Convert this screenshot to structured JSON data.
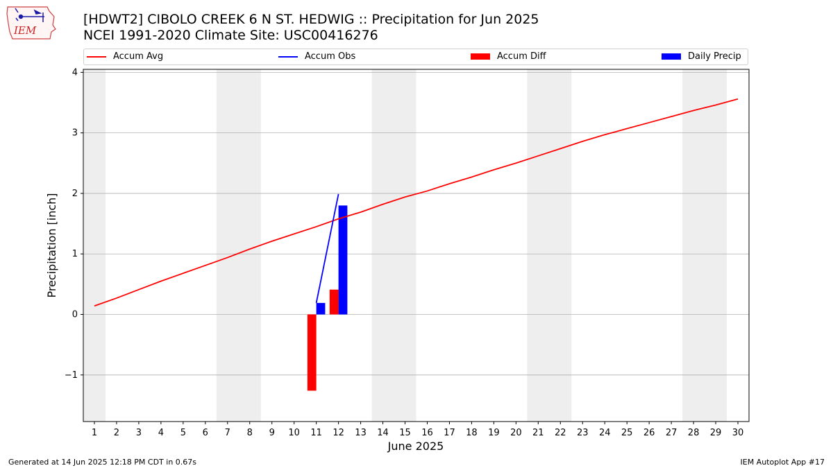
{
  "chart_data": {
    "type": "bar",
    "title": "[HDWT2] CIBOLO CREEK 6 N ST. HEDWIG :: Precipitation for Jun 2025",
    "subtitle": "NCEI 1991-2020 Climate Site: USC00416276",
    "xlabel": "June 2025",
    "ylabel": "Precipitation [inch]",
    "xlim": [
      0.5,
      30.5
    ],
    "ylim": [
      -1.77,
      4.05
    ],
    "yticks": [
      -1,
      0,
      1,
      2,
      3,
      4
    ],
    "ytick_labels": [
      "−1",
      "0",
      "1",
      "2",
      "3",
      "4"
    ],
    "grid": "horizontal",
    "legend_position": "top",
    "weekend_shading": [
      [
        0.5,
        1.5
      ],
      [
        6.5,
        8.5
      ],
      [
        13.5,
        15.5
      ],
      [
        20.5,
        22.5
      ],
      [
        27.5,
        29.5
      ]
    ],
    "days": [
      1,
      2,
      3,
      4,
      5,
      6,
      7,
      8,
      9,
      10,
      11,
      12,
      13,
      14,
      15,
      16,
      17,
      18,
      19,
      20,
      21,
      22,
      23,
      24,
      25,
      26,
      27,
      28,
      29,
      30
    ],
    "series": [
      {
        "name": "Accum Avg",
        "kind": "line",
        "color": "#ff0000",
        "x": [
          1,
          2,
          3,
          4,
          5,
          6,
          7,
          8,
          9,
          10,
          11,
          12,
          13,
          14,
          15,
          16,
          17,
          18,
          19,
          20,
          21,
          22,
          23,
          24,
          25,
          26,
          27,
          28,
          29,
          30
        ],
        "values": [
          0.14,
          0.27,
          0.41,
          0.55,
          0.68,
          0.81,
          0.94,
          1.08,
          1.21,
          1.33,
          1.45,
          1.58,
          1.69,
          1.82,
          1.94,
          2.04,
          2.16,
          2.27,
          2.39,
          2.5,
          2.62,
          2.74,
          2.86,
          2.97,
          3.07,
          3.17,
          3.27,
          3.37,
          3.46,
          3.56
        ]
      },
      {
        "name": "Accum Obs",
        "kind": "line",
        "color": "#0000ff",
        "x": [
          11,
          12
        ],
        "values": [
          0.19,
          1.99
        ]
      },
      {
        "name": "Accum Diff",
        "kind": "bar",
        "color": "#ff0000",
        "offset": -0.2,
        "x": [
          11,
          12
        ],
        "values": [
          -1.26,
          0.41
        ]
      },
      {
        "name": "Daily Precip",
        "kind": "bar",
        "color": "#0000ff",
        "offset": 0.2,
        "x": [
          11,
          12
        ],
        "values": [
          0.19,
          1.8
        ]
      }
    ]
  },
  "footer": {
    "left": "Generated at 14 Jun 2025 12:18 PM CDT in 0.67s",
    "right": "IEM Autoplot App #17"
  },
  "logo": {
    "text": "IEM"
  }
}
